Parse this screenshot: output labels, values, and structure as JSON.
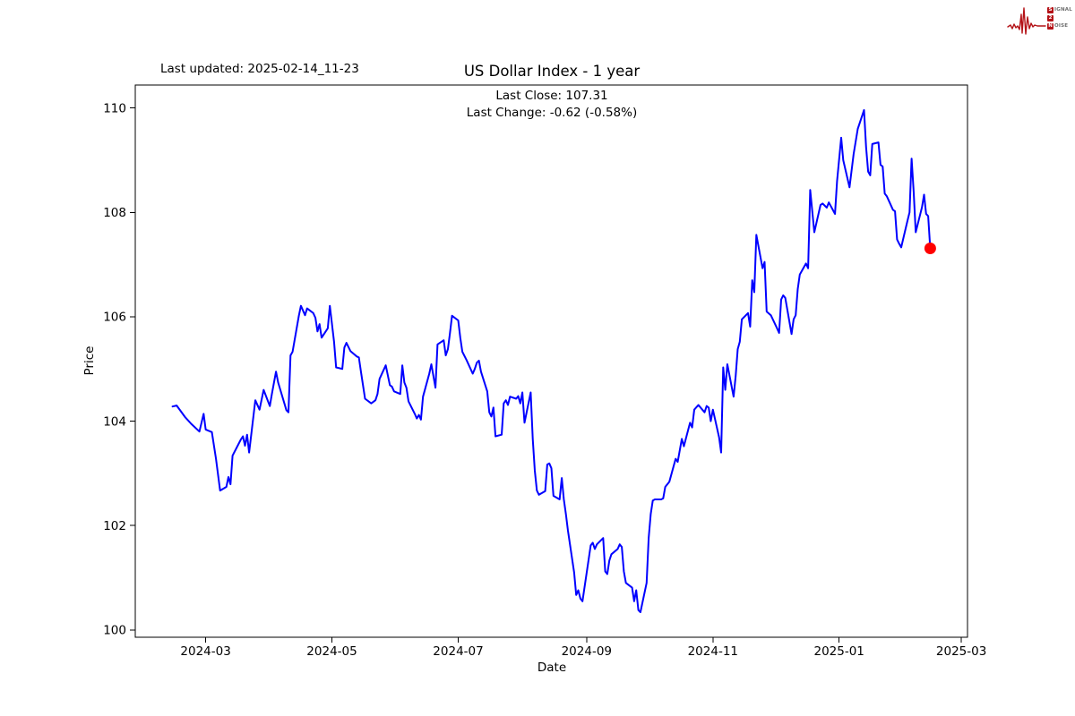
{
  "header": {
    "last_updated": "Last updated: 2025-02-14_11-23"
  },
  "logo": {
    "word1_first": "S",
    "word1_rest": "IGNAL",
    "word2": "2",
    "word3_first": "N",
    "word3_rest": "OISE",
    "color": "#b41217"
  },
  "chart_data": {
    "type": "line",
    "title": "US Dollar Index - 1 year",
    "xlabel": "Date",
    "ylabel": "Price",
    "annotations": [
      "Last Close: 107.31",
      "Last Change: -0.62 (-0.58%)"
    ],
    "last_close": 107.31,
    "last_change": -0.62,
    "last_change_pct": "-0.58%",
    "line_color": "#0000ff",
    "last_point_color": "#ff0000",
    "grid": false,
    "legend": "none",
    "ylim": [
      99.86,
      110.44
    ],
    "xlim": [
      "2024-01-27",
      "2025-03-04"
    ],
    "y_ticks": [
      100,
      102,
      104,
      106,
      108,
      110
    ],
    "x_ticks": [
      {
        "label": "2024-03",
        "date": "2024-03-01"
      },
      {
        "label": "2024-05",
        "date": "2024-05-01"
      },
      {
        "label": "2024-07",
        "date": "2024-07-01"
      },
      {
        "label": "2024-09",
        "date": "2024-09-01"
      },
      {
        "label": "2024-11",
        "date": "2024-11-01"
      },
      {
        "label": "2025-01",
        "date": "2025-01-01"
      },
      {
        "label": "2025-03",
        "date": "2025-03-01"
      }
    ],
    "series": [
      {
        "name": "US Dollar Index",
        "points": [
          [
            "2024-02-14",
            104.28
          ],
          [
            "2024-02-16",
            104.3
          ],
          [
            "2024-02-20",
            104.08
          ],
          [
            "2024-02-23",
            103.95
          ],
          [
            "2024-02-27",
            103.8
          ],
          [
            "2024-02-29",
            104.14
          ],
          [
            "2024-03-01",
            103.84
          ],
          [
            "2024-03-04",
            103.79
          ],
          [
            "2024-03-06",
            103.28
          ],
          [
            "2024-03-08",
            102.67
          ],
          [
            "2024-03-11",
            102.74
          ],
          [
            "2024-03-12",
            102.93
          ],
          [
            "2024-03-13",
            102.79
          ],
          [
            "2024-03-14",
            103.34
          ],
          [
            "2024-03-18",
            103.65
          ],
          [
            "2024-03-19",
            103.71
          ],
          [
            "2024-03-20",
            103.53
          ],
          [
            "2024-03-21",
            103.74
          ],
          [
            "2024-03-22",
            103.4
          ],
          [
            "2024-03-25",
            104.4
          ],
          [
            "2024-03-27",
            104.22
          ],
          [
            "2024-03-29",
            104.6
          ],
          [
            "2024-04-01",
            104.29
          ],
          [
            "2024-04-02",
            104.52
          ],
          [
            "2024-04-04",
            104.95
          ],
          [
            "2024-04-05",
            104.74
          ],
          [
            "2024-04-09",
            104.21
          ],
          [
            "2024-04-10",
            104.17
          ],
          [
            "2024-04-11",
            105.26
          ],
          [
            "2024-04-12",
            105.33
          ],
          [
            "2024-04-15",
            106.02
          ],
          [
            "2024-04-16",
            106.21
          ],
          [
            "2024-04-18",
            106.03
          ],
          [
            "2024-04-19",
            106.16
          ],
          [
            "2024-04-22",
            106.07
          ],
          [
            "2024-04-23",
            105.98
          ],
          [
            "2024-04-24",
            105.72
          ],
          [
            "2024-04-25",
            105.86
          ],
          [
            "2024-04-26",
            105.6
          ],
          [
            "2024-04-29",
            105.78
          ],
          [
            "2024-04-30",
            106.21
          ],
          [
            "2024-05-02",
            105.52
          ],
          [
            "2024-05-03",
            105.03
          ],
          [
            "2024-05-06",
            105.0
          ],
          [
            "2024-05-07",
            105.41
          ],
          [
            "2024-05-08",
            105.5
          ],
          [
            "2024-05-10",
            105.34
          ],
          [
            "2024-05-13",
            105.24
          ],
          [
            "2024-05-14",
            105.22
          ],
          [
            "2024-05-15",
            104.95
          ],
          [
            "2024-05-17",
            104.43
          ],
          [
            "2024-05-20",
            104.34
          ],
          [
            "2024-05-22",
            104.4
          ],
          [
            "2024-05-23",
            104.52
          ],
          [
            "2024-05-24",
            104.81
          ],
          [
            "2024-05-27",
            105.07
          ],
          [
            "2024-05-29",
            104.69
          ],
          [
            "2024-05-30",
            104.66
          ],
          [
            "2024-05-31",
            104.57
          ],
          [
            "2024-06-03",
            104.52
          ],
          [
            "2024-06-04",
            105.07
          ],
          [
            "2024-06-05",
            104.74
          ],
          [
            "2024-06-06",
            104.64
          ],
          [
            "2024-06-07",
            104.38
          ],
          [
            "2024-06-10",
            104.14
          ],
          [
            "2024-06-11",
            104.05
          ],
          [
            "2024-06-12",
            104.12
          ],
          [
            "2024-06-13",
            104.03
          ],
          [
            "2024-06-14",
            104.47
          ],
          [
            "2024-06-17",
            104.91
          ],
          [
            "2024-06-18",
            105.09
          ],
          [
            "2024-06-20",
            104.64
          ],
          [
            "2024-06-21",
            105.47
          ],
          [
            "2024-06-24",
            105.55
          ],
          [
            "2024-06-25",
            105.26
          ],
          [
            "2024-06-26",
            105.38
          ],
          [
            "2024-06-27",
            105.69
          ],
          [
            "2024-06-28",
            106.02
          ],
          [
            "2024-07-01",
            105.93
          ],
          [
            "2024-07-02",
            105.6
          ],
          [
            "2024-07-03",
            105.33
          ],
          [
            "2024-07-05",
            105.17
          ],
          [
            "2024-07-08",
            104.91
          ],
          [
            "2024-07-09",
            105.0
          ],
          [
            "2024-07-10",
            105.12
          ],
          [
            "2024-07-11",
            105.16
          ],
          [
            "2024-07-12",
            104.95
          ],
          [
            "2024-07-15",
            104.57
          ],
          [
            "2024-07-16",
            104.17
          ],
          [
            "2024-07-17",
            104.09
          ],
          [
            "2024-07-18",
            104.26
          ],
          [
            "2024-07-19",
            103.71
          ],
          [
            "2024-07-22",
            103.74
          ],
          [
            "2024-07-23",
            104.34
          ],
          [
            "2024-07-24",
            104.4
          ],
          [
            "2024-07-25",
            104.31
          ],
          [
            "2024-07-26",
            104.47
          ],
          [
            "2024-07-29",
            104.43
          ],
          [
            "2024-07-30",
            104.48
          ],
          [
            "2024-07-31",
            104.34
          ],
          [
            "2024-08-01",
            104.55
          ],
          [
            "2024-08-02",
            103.97
          ],
          [
            "2024-08-05",
            104.55
          ],
          [
            "2024-08-06",
            103.66
          ],
          [
            "2024-08-07",
            103.05
          ],
          [
            "2024-08-08",
            102.67
          ],
          [
            "2024-08-09",
            102.59
          ],
          [
            "2024-08-12",
            102.66
          ],
          [
            "2024-08-13",
            103.17
          ],
          [
            "2024-08-14",
            103.19
          ],
          [
            "2024-08-15",
            103.1
          ],
          [
            "2024-08-16",
            102.57
          ],
          [
            "2024-08-19",
            102.5
          ],
          [
            "2024-08-20",
            102.91
          ],
          [
            "2024-08-21",
            102.5
          ],
          [
            "2024-08-22",
            102.22
          ],
          [
            "2024-08-23",
            101.9
          ],
          [
            "2024-08-26",
            101.1
          ],
          [
            "2024-08-27",
            100.67
          ],
          [
            "2024-08-28",
            100.76
          ],
          [
            "2024-08-29",
            100.6
          ],
          [
            "2024-08-30",
            100.55
          ],
          [
            "2024-09-03",
            101.62
          ],
          [
            "2024-09-04",
            101.67
          ],
          [
            "2024-09-05",
            101.55
          ],
          [
            "2024-09-06",
            101.64
          ],
          [
            "2024-09-09",
            101.76
          ],
          [
            "2024-09-10",
            101.12
          ],
          [
            "2024-09-11",
            101.07
          ],
          [
            "2024-09-12",
            101.33
          ],
          [
            "2024-09-13",
            101.45
          ],
          [
            "2024-09-16",
            101.55
          ],
          [
            "2024-09-17",
            101.64
          ],
          [
            "2024-09-18",
            101.59
          ],
          [
            "2024-09-19",
            101.12
          ],
          [
            "2024-09-20",
            100.9
          ],
          [
            "2024-09-23",
            100.81
          ],
          [
            "2024-09-24",
            100.55
          ],
          [
            "2024-09-25",
            100.76
          ],
          [
            "2024-09-26",
            100.38
          ],
          [
            "2024-09-27",
            100.34
          ],
          [
            "2024-09-30",
            100.9
          ],
          [
            "2024-10-01",
            101.76
          ],
          [
            "2024-10-02",
            102.22
          ],
          [
            "2024-10-03",
            102.48
          ],
          [
            "2024-10-04",
            102.5
          ],
          [
            "2024-10-07",
            102.5
          ],
          [
            "2024-10-08",
            102.52
          ],
          [
            "2024-10-09",
            102.74
          ],
          [
            "2024-10-11",
            102.84
          ],
          [
            "2024-10-14",
            103.28
          ],
          [
            "2024-10-15",
            103.22
          ],
          [
            "2024-10-17",
            103.66
          ],
          [
            "2024-10-18",
            103.52
          ],
          [
            "2024-10-21",
            103.97
          ],
          [
            "2024-10-22",
            103.88
          ],
          [
            "2024-10-23",
            104.22
          ],
          [
            "2024-10-25",
            104.31
          ],
          [
            "2024-10-28",
            104.17
          ],
          [
            "2024-10-29",
            104.29
          ],
          [
            "2024-10-30",
            104.26
          ],
          [
            "2024-10-31",
            104.0
          ],
          [
            "2024-11-01",
            104.22
          ],
          [
            "2024-11-04",
            103.69
          ],
          [
            "2024-11-05",
            103.4
          ],
          [
            "2024-11-06",
            105.03
          ],
          [
            "2024-11-07",
            104.6
          ],
          [
            "2024-11-08",
            105.09
          ],
          [
            "2024-11-11",
            104.47
          ],
          [
            "2024-11-12",
            104.86
          ],
          [
            "2024-11-13",
            105.38
          ],
          [
            "2024-11-14",
            105.52
          ],
          [
            "2024-11-15",
            105.95
          ],
          [
            "2024-11-18",
            106.07
          ],
          [
            "2024-11-19",
            105.81
          ],
          [
            "2024-11-20",
            106.7
          ],
          [
            "2024-11-21",
            106.47
          ],
          [
            "2024-11-22",
            107.57
          ],
          [
            "2024-11-25",
            106.93
          ],
          [
            "2024-11-26",
            107.05
          ],
          [
            "2024-11-27",
            106.1
          ],
          [
            "2024-11-29",
            106.03
          ],
          [
            "2024-12-02",
            105.78
          ],
          [
            "2024-12-03",
            105.69
          ],
          [
            "2024-12-04",
            106.33
          ],
          [
            "2024-12-05",
            106.41
          ],
          [
            "2024-12-06",
            106.36
          ],
          [
            "2024-12-09",
            105.67
          ],
          [
            "2024-12-10",
            105.95
          ],
          [
            "2024-12-11",
            106.03
          ],
          [
            "2024-12-12",
            106.53
          ],
          [
            "2024-12-13",
            106.81
          ],
          [
            "2024-12-16",
            107.02
          ],
          [
            "2024-12-17",
            106.93
          ],
          [
            "2024-12-18",
            108.43
          ],
          [
            "2024-12-20",
            107.62
          ],
          [
            "2024-12-23",
            108.14
          ],
          [
            "2024-12-24",
            108.17
          ],
          [
            "2024-12-26",
            108.09
          ],
          [
            "2024-12-27",
            108.19
          ],
          [
            "2024-12-30",
            107.97
          ],
          [
            "2024-12-31",
            108.6
          ],
          [
            "2025-01-02",
            109.43
          ],
          [
            "2025-01-03",
            109.0
          ],
          [
            "2025-01-06",
            108.48
          ],
          [
            "2025-01-08",
            109.12
          ],
          [
            "2025-01-10",
            109.6
          ],
          [
            "2025-01-13",
            109.96
          ],
          [
            "2025-01-14",
            109.25
          ],
          [
            "2025-01-15",
            108.78
          ],
          [
            "2025-01-16",
            108.71
          ],
          [
            "2025-01-17",
            109.31
          ],
          [
            "2025-01-20",
            109.34
          ],
          [
            "2025-01-21",
            108.91
          ],
          [
            "2025-01-22",
            108.88
          ],
          [
            "2025-01-23",
            108.36
          ],
          [
            "2025-01-24",
            108.31
          ],
          [
            "2025-01-27",
            108.05
          ],
          [
            "2025-01-28",
            108.02
          ],
          [
            "2025-01-29",
            107.48
          ],
          [
            "2025-01-30",
            107.4
          ],
          [
            "2025-01-31",
            107.33
          ],
          [
            "2025-02-03",
            107.84
          ],
          [
            "2025-02-04",
            108.0
          ],
          [
            "2025-02-05",
            109.03
          ],
          [
            "2025-02-06",
            108.4
          ],
          [
            "2025-02-07",
            107.62
          ],
          [
            "2025-02-10",
            108.1
          ],
          [
            "2025-02-11",
            108.34
          ],
          [
            "2025-02-12",
            107.97
          ],
          [
            "2025-02-13",
            107.93
          ],
          [
            "2025-02-14",
            107.31
          ]
        ]
      }
    ]
  }
}
